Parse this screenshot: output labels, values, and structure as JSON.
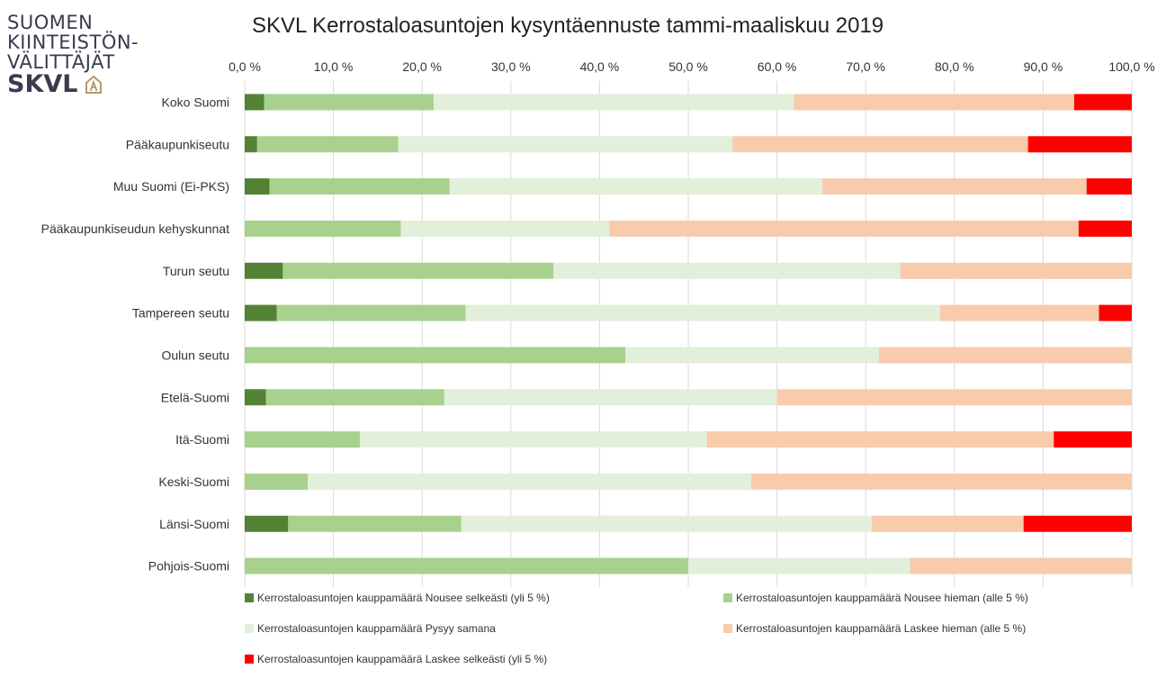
{
  "logo": {
    "line1": "SUOMEN",
    "line2": "KIINTEISTÖN-",
    "line3": "VÄLITTÄJÄT",
    "brand": "SKVL",
    "brand_color": "#3b3a4f",
    "accent_color": "#b8966a"
  },
  "chart_data": {
    "type": "bar",
    "orientation": "horizontal",
    "stacked": true,
    "title": "SKVL Kerrostaloasuntojen kysyntäennuste tammi-maaliskuu 2019",
    "xlim": [
      0,
      100
    ],
    "x_ticks": [
      "0,0 %",
      "10,0 %",
      "20,0 %",
      "30,0 %",
      "40,0 %",
      "50,0 %",
      "60,0 %",
      "70,0 %",
      "80,0 %",
      "90,0 %",
      "100,0 %"
    ],
    "x_axis_position": "top",
    "grid": true,
    "legend_position": "bottom",
    "categories": [
      "Koko Suomi",
      "Pääkaupunkiseutu",
      "Muu Suomi (Ei-PKS)",
      "Pääkaupunkiseudun kehyskunnat",
      "Turun seutu",
      "Tampereen seutu",
      "Oulun seutu",
      "Etelä-Suomi",
      "Itä-Suomi",
      "Keski-Suomi",
      "Länsi-Suomi",
      "Pohjois-Suomi"
    ],
    "series": [
      {
        "name": "Kerrostaloasuntojen kauppamäärä Nousee selkeästi (yli 5 %)",
        "color": "#548235",
        "values": [
          2.2,
          1.4,
          2.8,
          0,
          4.3,
          3.6,
          0,
          2.4,
          0,
          0,
          4.9,
          0
        ]
      },
      {
        "name": "Kerrostaloasuntojen kauppamäärä Nousee hieman (alle 5 %)",
        "color": "#a9d18e",
        "values": [
          19.1,
          15.9,
          20.3,
          17.6,
          30.5,
          21.3,
          42.9,
          20.1,
          13.0,
          7.1,
          19.5,
          50.0
        ]
      },
      {
        "name": "Kerrostaloasuntojen kauppamäärä Pysyy samana",
        "color": "#e2efda",
        "values": [
          40.6,
          37.7,
          42.0,
          23.5,
          39.1,
          53.5,
          28.6,
          37.5,
          39.1,
          50.0,
          46.3,
          25.0
        ]
      },
      {
        "name": "Kerrostaloasuntojen kauppamäärä Laskee hieman (alle 5 %)",
        "color": "#f8cbad",
        "values": [
          31.6,
          33.3,
          29.8,
          52.9,
          26.1,
          17.9,
          28.5,
          40.0,
          39.1,
          42.9,
          17.1,
          25.0
        ]
      },
      {
        "name": "Kerrostaloasuntojen kauppamäärä Laskee selkeästi (yli 5 %)",
        "color": "#ff0000",
        "values": [
          6.5,
          11.7,
          5.1,
          6.0,
          0,
          3.7,
          0,
          0,
          8.8,
          0,
          12.2,
          0
        ]
      }
    ]
  }
}
